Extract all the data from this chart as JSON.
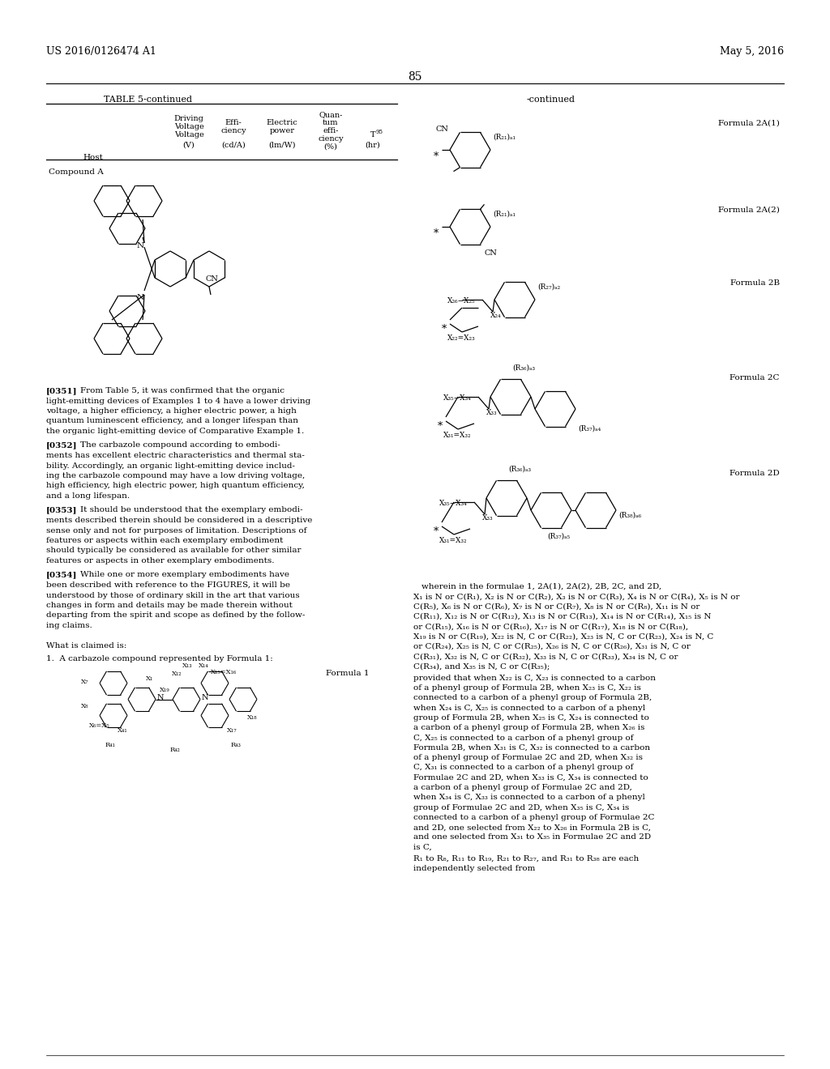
{
  "page_header_left": "US 2016/0126474 A1",
  "page_header_right": "May 5, 2016",
  "page_number": "85",
  "table_title": "TABLE 5-continued",
  "continued_label": "-continued",
  "bg_color": "#ffffff"
}
